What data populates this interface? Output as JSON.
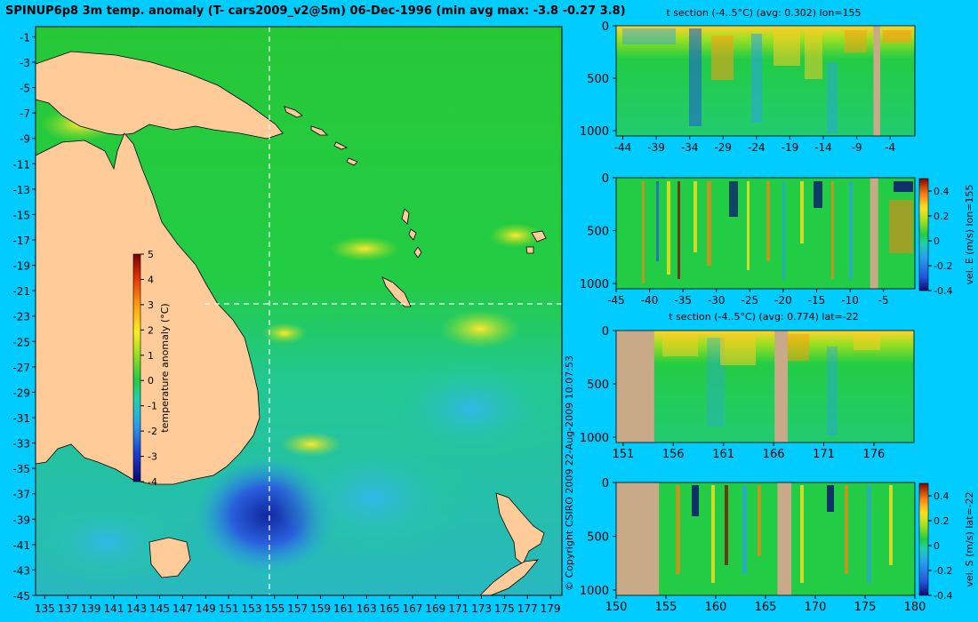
{
  "main_title": "SPINUP6p8 3m temp. anomaly (T- cars2009_v2@5m) 06-Dec-1996 (min avg max: -3.8 -0.27 3.8)",
  "copyright": "© Copyright CSIRO 2009   22-Aug-2009 10:07:53",
  "colors": {
    "background": "#00ccff",
    "land": "#ffcc99",
    "section_land": "#c8aa88",
    "ocean_base": "#22cc44",
    "crosshair": "#ffffff"
  },
  "chart_data": [
    {
      "type": "heatmap",
      "name": "map",
      "title": "",
      "x_ticks": [
        135,
        137,
        139,
        141,
        143,
        145,
        147,
        149,
        151,
        153,
        155,
        157,
        159,
        161,
        163,
        165,
        167,
        169,
        171,
        173,
        175,
        177,
        179
      ],
      "y_ticks": [
        -1,
        -3,
        -5,
        -7,
        -9,
        -11,
        -13,
        -15,
        -17,
        -19,
        -21,
        -23,
        -25,
        -27,
        -29,
        -31,
        -33,
        -35,
        -37,
        -39,
        -41,
        -43,
        -45
      ],
      "xlim": [
        134.2,
        180
      ],
      "ylim": [
        -45,
        -0.2
      ],
      "crosshair": {
        "lon": 155,
        "lat": -22
      },
      "colorbar": {
        "label": "temperature anomaly (°C)",
        "range": [
          -4,
          5
        ],
        "ticks": [
          "5",
          "4",
          "3",
          "2",
          "1",
          "0",
          "-1",
          "-2",
          "-3",
          "-4"
        ]
      }
    },
    {
      "type": "heatmap",
      "name": "t-section-lon155",
      "title": "t section (-4..5°C) (avg: 0.302) lon=155",
      "x_ticks": [
        -44,
        -39,
        -34,
        -29,
        -24,
        -19,
        -14,
        -9,
        -4
      ],
      "xlim": [
        -45,
        -0.3
      ],
      "y_ticks": [
        "0",
        "500",
        "1000"
      ],
      "ylim": [
        0,
        1050
      ],
      "land_intervals": [
        [
          -6.5,
          -5.5
        ]
      ]
    },
    {
      "type": "heatmap",
      "name": "vel-e-section-lon155",
      "title": "",
      "x_ticks": [
        -45,
        -40,
        -35,
        -30,
        -25,
        -20,
        -15,
        -10,
        -5
      ],
      "xlim": [
        -45,
        -0.3
      ],
      "y_ticks": [
        "0",
        "500",
        "1000"
      ],
      "ylim": [
        0,
        1050
      ],
      "land_intervals": [
        [
          -7,
          -5.8
        ]
      ],
      "colorbar": {
        "label": "vel. E (m/s) lon=155",
        "range": [
          -0.4,
          0.5
        ],
        "ticks": [
          "0.4",
          "0.2",
          "0",
          "-0.2",
          "-0.4"
        ]
      }
    },
    {
      "type": "heatmap",
      "name": "t-section-lat-22",
      "title": "t section (-4..5°C) (avg: 0.774) lat=-22",
      "x_ticks": [
        "151",
        "156",
        "161",
        "166",
        "171",
        "176"
      ],
      "xlim": [
        150.3,
        180
      ],
      "y_ticks": [
        "0",
        "500",
        "1000"
      ],
      "ylim": [
        0,
        1050
      ],
      "land_intervals": [
        [
          150.3,
          154.1
        ],
        [
          166.1,
          167.4
        ]
      ]
    },
    {
      "type": "heatmap",
      "name": "vel-s-section-lat-22",
      "title": "",
      "x_ticks": [
        "150",
        "155",
        "160",
        "165",
        "170",
        "175",
        "180"
      ],
      "xlim": [
        150,
        180
      ],
      "y_ticks": [
        "0",
        "500",
        "1000"
      ],
      "ylim": [
        0,
        1050
      ],
      "land_intervals": [
        [
          150,
          154.3
        ],
        [
          166.2,
          167.6
        ]
      ],
      "colorbar": {
        "label": "vel. S (m/s) lat=-22",
        "range": [
          -0.4,
          0.5
        ],
        "ticks": [
          "0.4",
          "0.2",
          "0",
          "-0.2",
          "-0.4"
        ]
      }
    }
  ]
}
